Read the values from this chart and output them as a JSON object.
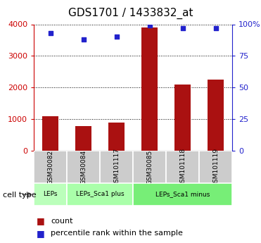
{
  "title": "GDS1701 / 1433832_at",
  "samples": [
    "GSM30082",
    "GSM30084",
    "GSM101117",
    "GSM30085",
    "GSM101118",
    "GSM101119"
  ],
  "counts": [
    1100,
    780,
    900,
    3900,
    2100,
    2250
  ],
  "percentiles": [
    93,
    88,
    90,
    99,
    97,
    97
  ],
  "bar_color": "#aa1111",
  "dot_color": "#2222cc",
  "ylim_left": [
    0,
    4000
  ],
  "ylim_right": [
    0,
    100
  ],
  "yticks_left": [
    0,
    1000,
    2000,
    3000,
    4000
  ],
  "yticks_right": [
    0,
    25,
    50,
    75,
    100
  ],
  "ytick_labels_right": [
    "0",
    "25",
    "50",
    "75",
    "100%"
  ],
  "cell_type_label": "cell type",
  "groups": [
    {
      "label": "LEPs",
      "start": 0,
      "end": 1,
      "color": "#bbffbb"
    },
    {
      "label": "LEPs_Sca1 plus",
      "start": 1,
      "end": 3,
      "color": "#aaffaa"
    },
    {
      "label": "LEPs_Sca1 minus",
      "start": 3,
      "end": 6,
      "color": "#77ee77"
    }
  ],
  "legend_count_label": "count",
  "legend_pct_label": "percentile rank within the sample",
  "background_color": "#ffffff",
  "left_tick_color": "#cc0000",
  "right_tick_color": "#2222cc",
  "gsm_box_color": "#cccccc",
  "title_fontsize": 11,
  "bar_width": 0.5
}
